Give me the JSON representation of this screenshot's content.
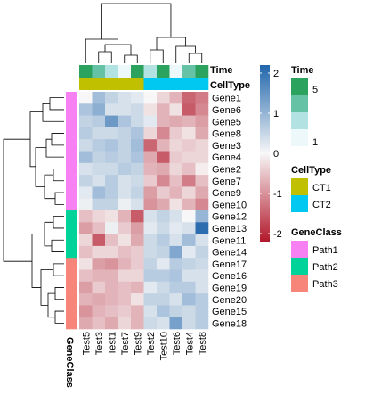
{
  "chart_data": {
    "type": "heatmap",
    "rows": [
      "Gene1",
      "Gene6",
      "Gene5",
      "Gene8",
      "Gene3",
      "Gene4",
      "Gene2",
      "Gene7",
      "Gene9",
      "Gene10",
      "Gene12",
      "Gene13",
      "Gene11",
      "Gene14",
      "Gene17",
      "Gene16",
      "Gene19",
      "Gene20",
      "Gene15",
      "Gene18"
    ],
    "columns": [
      "Test5",
      "Test3",
      "Test1",
      "Test7",
      "Test9",
      "Test2",
      "Test10",
      "Test6",
      "Test4",
      "Test8"
    ],
    "values": [
      [
        0.0,
        0.8,
        0.5,
        0.3,
        0.2,
        0.0,
        -0.3,
        -0.6,
        -1.3,
        -1.1
      ],
      [
        0.7,
        1.0,
        0.3,
        0.3,
        0.4,
        -0.2,
        -0.6,
        -0.2,
        -1.4,
        -1.0
      ],
      [
        0.5,
        0.6,
        1.3,
        0.7,
        0.4,
        0.2,
        -0.6,
        -0.7,
        -0.6,
        -0.8
      ],
      [
        0.6,
        0.4,
        0.4,
        0.5,
        0.7,
        -0.3,
        -1.0,
        -0.4,
        -0.2,
        -0.7
      ],
      [
        0.4,
        0.6,
        0.7,
        0.5,
        0.8,
        -1.3,
        -0.6,
        -0.3,
        -0.4,
        -0.3
      ],
      [
        0.8,
        0.5,
        0.6,
        0.5,
        0.7,
        -0.7,
        -1.4,
        -0.4,
        -0.3,
        -0.3
      ],
      [
        0.3,
        0.4,
        0.4,
        0.6,
        0.5,
        -0.6,
        -0.7,
        -0.3,
        -0.5,
        -0.1
      ],
      [
        0.5,
        0.3,
        0.6,
        0.3,
        0.4,
        -0.4,
        -1.0,
        -0.5,
        -1.1,
        -0.5
      ],
      [
        0.2,
        0.8,
        0.6,
        0.3,
        0.5,
        -0.8,
        -0.4,
        -0.6,
        -0.3,
        -0.7
      ],
      [
        0.1,
        0.5,
        0.5,
        0.1,
        0.3,
        -0.9,
        -0.7,
        -0.2,
        -0.6,
        -1.0
      ],
      [
        -0.5,
        -0.3,
        -0.2,
        -0.6,
        -1.4,
        0.3,
        0.5,
        0.3,
        0.0,
        0.9
      ],
      [
        -0.8,
        -0.5,
        0.1,
        -0.4,
        -0.8,
        0.2,
        0.4,
        0.2,
        0.3,
        1.9
      ],
      [
        -0.3,
        -1.4,
        -0.5,
        -0.2,
        -0.7,
        0.4,
        0.6,
        0.3,
        0.8,
        0.3
      ],
      [
        -0.5,
        -0.3,
        -0.3,
        -0.5,
        -0.4,
        0.4,
        0.5,
        1.1,
        0.2,
        0.5
      ],
      [
        -0.2,
        -0.8,
        -0.9,
        -0.6,
        -0.4,
        0.5,
        0.2,
        0.6,
        0.5,
        0.4
      ],
      [
        -0.5,
        -0.6,
        -0.6,
        -0.3,
        -0.3,
        0.6,
        0.6,
        0.7,
        0.3,
        0.3
      ],
      [
        -0.8,
        -0.4,
        -0.6,
        -0.5,
        -0.6,
        0.2,
        0.4,
        0.6,
        0.6,
        0.3
      ],
      [
        -0.6,
        -0.7,
        -0.6,
        -0.5,
        -0.2,
        0.5,
        0.5,
        0.3,
        0.8,
        0.6
      ],
      [
        -0.9,
        -0.6,
        -0.5,
        -0.4,
        -0.6,
        0.3,
        0.7,
        0.5,
        0.4,
        0.6
      ],
      [
        -0.7,
        -0.5,
        -0.7,
        -0.3,
        -0.6,
        0.4,
        0.3,
        1.2,
        0.4,
        0.6
      ]
    ],
    "color_scale": {
      "min": -2,
      "max": 2,
      "ticks": [
        "2",
        "1",
        "0",
        "-1",
        "-2"
      ],
      "low_color": "#B2182B",
      "mid_color": "#F7F7F7",
      "high_color": "#2166AC"
    },
    "column_annotations": {
      "Time": {
        "values": [
          5,
          3,
          2,
          1,
          4,
          2,
          5,
          1,
          3,
          4
        ],
        "legend_ticks": [
          "5",
          "1"
        ],
        "colors": [
          "#EDF8FB",
          "#B2E2E2",
          "#66C2A4",
          "#2CA25F"
        ]
      },
      "CellType": {
        "values": [
          "CT1",
          "CT1",
          "CT1",
          "CT1",
          "CT1",
          "CT2",
          "CT2",
          "CT2",
          "CT2",
          "CT2"
        ],
        "legend": [
          {
            "label": "CT1",
            "color": "#C0C000"
          },
          {
            "label": "CT2",
            "color": "#00C8F0"
          }
        ]
      }
    },
    "row_annotations": {
      "GeneClass": {
        "values": [
          "Path1",
          "Path1",
          "Path1",
          "Path1",
          "Path1",
          "Path1",
          "Path1",
          "Path1",
          "Path1",
          "Path1",
          "Path2",
          "Path2",
          "Path2",
          "Path2",
          "Path3",
          "Path3",
          "Path3",
          "Path3",
          "Path3",
          "Path3"
        ],
        "legend": [
          {
            "label": "Path1",
            "color": "#F781F3"
          },
          {
            "label": "Path2",
            "color": "#00D39A"
          },
          {
            "label": "Path3",
            "color": "#F8857A"
          }
        ]
      }
    },
    "annotation_titles": {
      "time": "Time",
      "celltype": "CellType",
      "geneclass": "GeneClass"
    },
    "grid": false,
    "row_dendrogram": true,
    "column_dendrogram": true
  }
}
